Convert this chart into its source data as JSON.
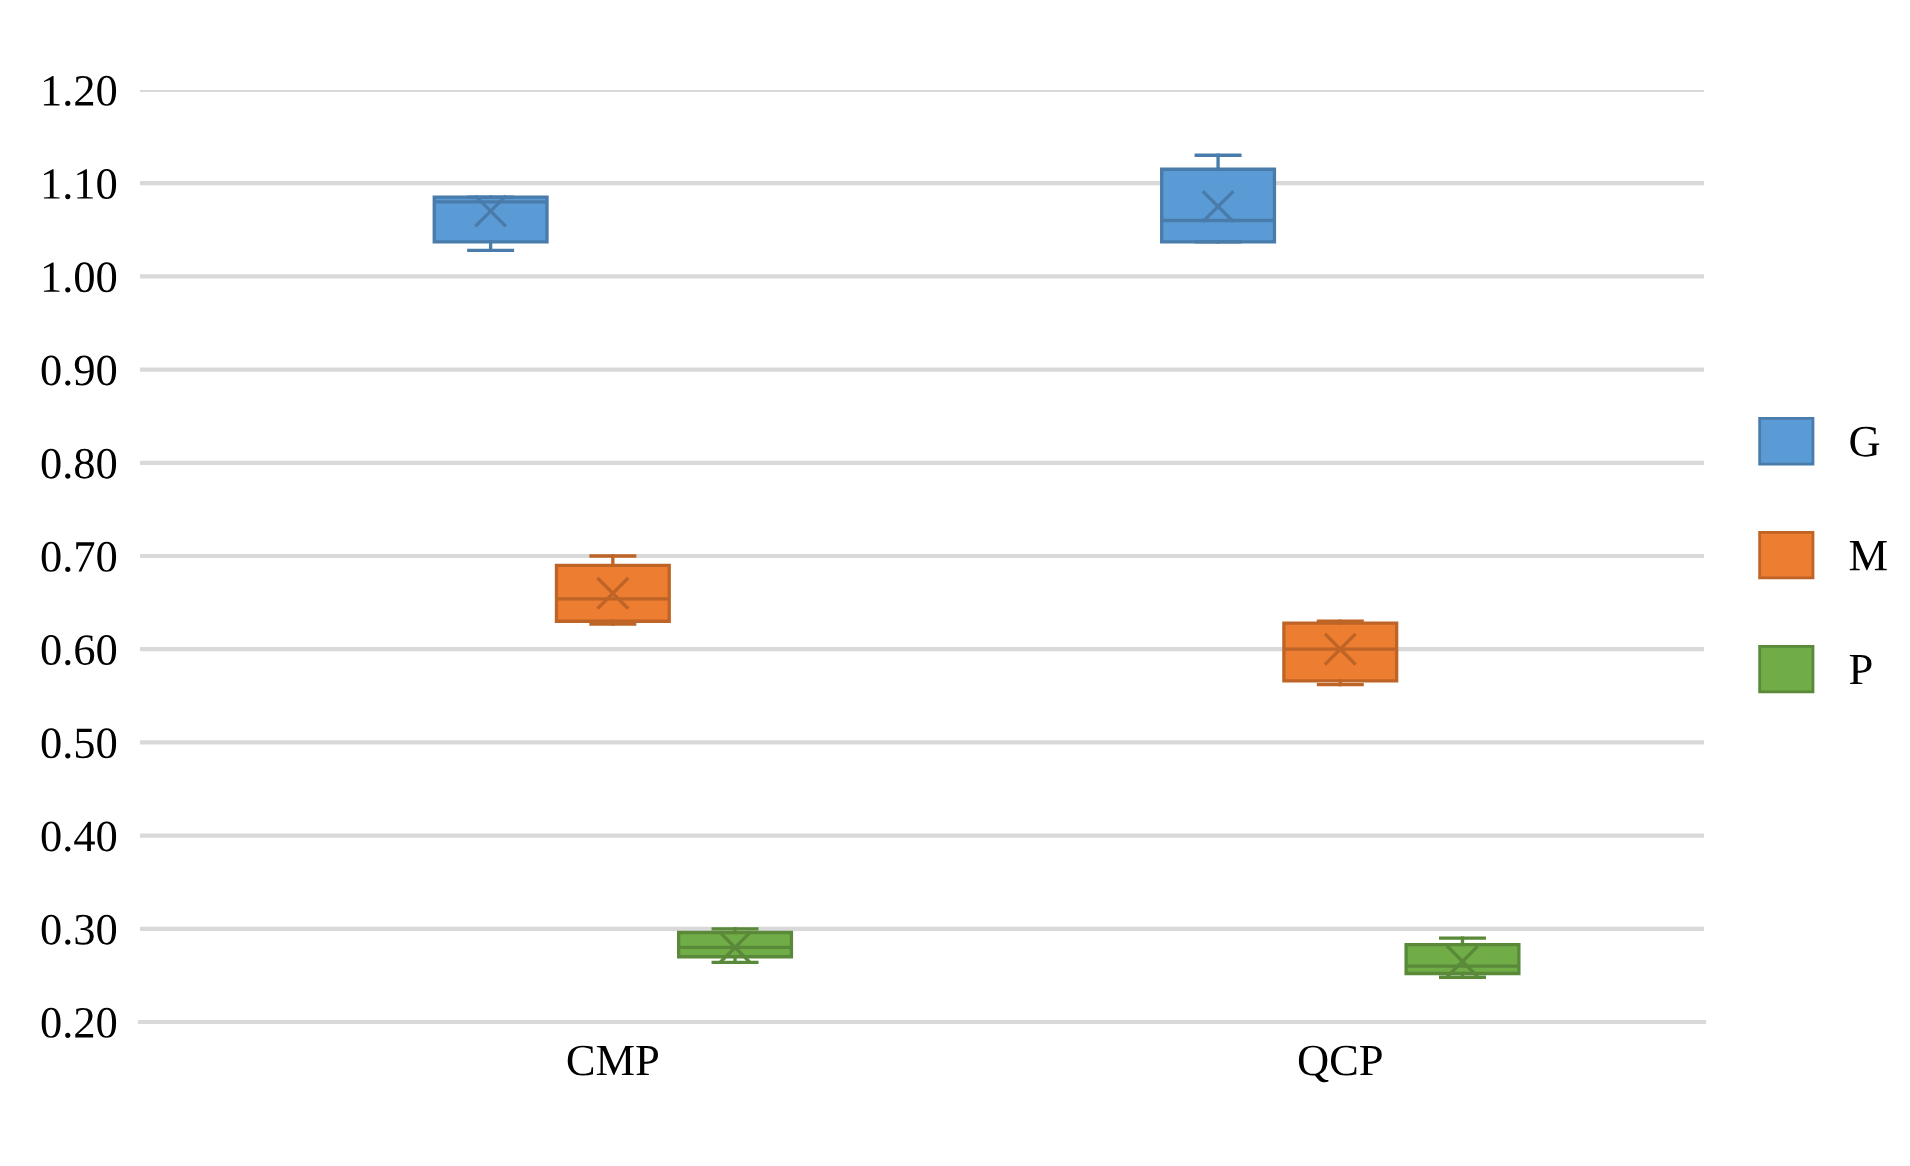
{
  "chart_data": {
    "type": "box",
    "categories": [
      "CMP",
      "QCP"
    ],
    "series": [
      {
        "name": "G",
        "color": "#5b9bd5",
        "boxes": [
          {
            "low": 1.028,
            "q1": 1.037,
            "median": 1.08,
            "q3": 1.085,
            "high": 1.085,
            "mean": 1.07
          },
          {
            "low": 1.037,
            "q1": 1.037,
            "median": 1.06,
            "q3": 1.115,
            "high": 1.13,
            "mean": 1.075
          }
        ]
      },
      {
        "name": "M",
        "color": "#ed7d31",
        "boxes": [
          {
            "low": 0.627,
            "q1": 0.63,
            "median": 0.654,
            "q3": 0.69,
            "high": 0.7,
            "mean": 0.66
          },
          {
            "low": 0.562,
            "q1": 0.566,
            "median": 0.6,
            "q3": 0.628,
            "high": 0.63,
            "mean": 0.6
          }
        ]
      },
      {
        "name": "P",
        "color": "#70ad47",
        "boxes": [
          {
            "low": 0.264,
            "q1": 0.27,
            "median": 0.28,
            "q3": 0.296,
            "high": 0.3,
            "mean": 0.28
          },
          {
            "low": 0.248,
            "q1": 0.252,
            "median": 0.26,
            "q3": 0.283,
            "high": 0.29,
            "mean": 0.265
          }
        ]
      }
    ],
    "ylim": [
      0.2,
      1.2
    ],
    "yticks": [
      {
        "value": 0.2,
        "label": "0.20"
      },
      {
        "value": 0.3,
        "label": "0.30"
      },
      {
        "value": 0.4,
        "label": "0.40"
      },
      {
        "value": 0.5,
        "label": "0.50"
      },
      {
        "value": 0.6,
        "label": "0.60"
      },
      {
        "value": 0.7,
        "label": "0.70"
      },
      {
        "value": 0.8,
        "label": "0.80"
      },
      {
        "value": 0.9,
        "label": "0.90"
      },
      {
        "value": 1.0,
        "label": "1.00"
      },
      {
        "value": 1.1,
        "label": "1.10"
      },
      {
        "value": 1.2,
        "label": "1.20"
      }
    ],
    "grid": "y",
    "legend": "right"
  }
}
